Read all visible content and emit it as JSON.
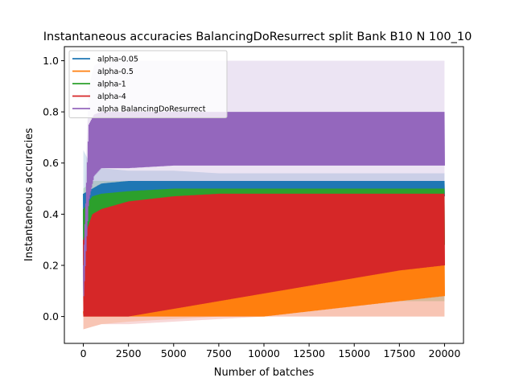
{
  "chart_data": {
    "type": "line",
    "title": "Instantaneous accuracies BalancingDoResurrect split Bank B10 N 100_10",
    "xlabel": "Number of batches",
    "ylabel": "Instantaneous accuracies",
    "xlim": [
      -1050,
      21050
    ],
    "ylim": [
      -0.105,
      1.055
    ],
    "xticks": [
      0,
      2500,
      5000,
      7500,
      10000,
      12500,
      15000,
      17500,
      20000
    ],
    "xtick_labels": [
      "0",
      "2500",
      "5000",
      "7500",
      "10000",
      "12500",
      "15000",
      "17500",
      "20000"
    ],
    "yticks": [
      0.0,
      0.2,
      0.4,
      0.6,
      0.8,
      1.0
    ],
    "ytick_labels": [
      "0.0",
      "0.2",
      "0.4",
      "0.6",
      "0.8",
      "1.0"
    ],
    "grid": false,
    "legend_position": "top-left",
    "series": [
      {
        "name": "alpha-0.05",
        "color": "#1f77b4",
        "x": [
          0,
          500,
          1000,
          2500,
          5000,
          7500,
          10000,
          12500,
          15000,
          17500,
          20000
        ],
        "lower": [
          0.0,
          0.4,
          0.42,
          0.44,
          0.45,
          0.46,
          0.46,
          0.47,
          0.47,
          0.47,
          0.47
        ],
        "upper": [
          0.48,
          0.5,
          0.52,
          0.53,
          0.53,
          0.53,
          0.53,
          0.53,
          0.53,
          0.53,
          0.53
        ],
        "band_lower": [
          0.0,
          0.3,
          0.35,
          0.38,
          0.4,
          0.4,
          0.4,
          0.4,
          0.4,
          0.4,
          0.4
        ],
        "band_upper": [
          0.65,
          0.58,
          0.58,
          0.57,
          0.57,
          0.56,
          0.56,
          0.56,
          0.56,
          0.56,
          0.56
        ]
      },
      {
        "name": "alpha-0.5",
        "color": "#ff7f0e",
        "x": [
          0,
          500,
          1000,
          2500,
          5000,
          7500,
          10000,
          12500,
          15000,
          17500,
          20000
        ],
        "lower": [
          0.0,
          0.0,
          0.0,
          0.0,
          0.0,
          0.0,
          0.0,
          0.02,
          0.04,
          0.06,
          0.08
        ],
        "upper": [
          0.02,
          0.03,
          0.05,
          0.06,
          0.08,
          0.12,
          0.16,
          0.2,
          0.24,
          0.27,
          0.3
        ],
        "band_lower": [
          -0.05,
          -0.04,
          -0.03,
          -0.02,
          -0.01,
          0.0,
          0.0,
          0.0,
          0.0,
          0.0,
          0.0
        ],
        "band_upper": [
          0.05,
          0.06,
          0.08,
          0.1,
          0.13,
          0.17,
          0.22,
          0.27,
          0.31,
          0.34,
          0.38
        ]
      },
      {
        "name": "alpha-1",
        "color": "#2ca02c",
        "x": [
          0,
          500,
          1000,
          2500,
          5000,
          7500,
          10000,
          12500,
          15000,
          17500,
          20000
        ],
        "lower": [
          0.0,
          0.1,
          0.15,
          0.2,
          0.22,
          0.24,
          0.26,
          0.27,
          0.28,
          0.28,
          0.28
        ],
        "upper": [
          0.42,
          0.47,
          0.48,
          0.49,
          0.5,
          0.5,
          0.5,
          0.5,
          0.5,
          0.5,
          0.5
        ],
        "band_lower": [
          0.0,
          0.0,
          0.0,
          0.02,
          0.04,
          0.05,
          0.06,
          0.06,
          0.06,
          0.06,
          0.06
        ],
        "band_upper": [
          0.5,
          0.53,
          0.53,
          0.53,
          0.53,
          0.53,
          0.53,
          0.53,
          0.53,
          0.53,
          0.53
        ]
      },
      {
        "name": "alpha-4",
        "color": "#d62728",
        "x": [
          0,
          500,
          1000,
          2500,
          5000,
          7500,
          10000,
          12500,
          15000,
          17500,
          20000
        ],
        "lower": [
          0.0,
          0.0,
          0.0,
          0.0,
          0.03,
          0.06,
          0.09,
          0.12,
          0.15,
          0.18,
          0.2
        ],
        "upper": [
          0.3,
          0.4,
          0.42,
          0.45,
          0.47,
          0.48,
          0.48,
          0.48,
          0.48,
          0.48,
          0.48
        ],
        "band_lower": [
          -0.05,
          -0.04,
          -0.03,
          -0.03,
          -0.02,
          -0.01,
          0.0,
          0.0,
          0.0,
          0.0,
          0.0
        ],
        "band_upper": [
          0.35,
          0.45,
          0.47,
          0.5,
          0.52,
          0.53,
          0.53,
          0.53,
          0.53,
          0.53,
          0.53
        ]
      },
      {
        "name": "alpha BalancingDoResurrect",
        "color": "#9467bd",
        "x": [
          0,
          300,
          600,
          1000,
          2500,
          5000,
          7500,
          10000,
          12500,
          15000,
          17500,
          20000
        ],
        "lower": [
          0.05,
          0.45,
          0.55,
          0.58,
          0.58,
          0.59,
          0.59,
          0.59,
          0.59,
          0.59,
          0.59,
          0.59
        ],
        "upper": [
          0.2,
          0.75,
          0.79,
          0.8,
          0.8,
          0.8,
          0.8,
          0.8,
          0.8,
          0.8,
          0.8,
          0.8
        ],
        "band_lower": [
          0.0,
          0.3,
          0.45,
          0.5,
          0.5,
          0.5,
          0.5,
          0.5,
          0.5,
          0.5,
          0.5,
          0.5
        ],
        "band_upper": [
          0.3,
          0.9,
          0.98,
          1.0,
          1.0,
          1.0,
          1.0,
          1.0,
          1.0,
          1.0,
          1.0,
          1.0
        ]
      }
    ]
  }
}
